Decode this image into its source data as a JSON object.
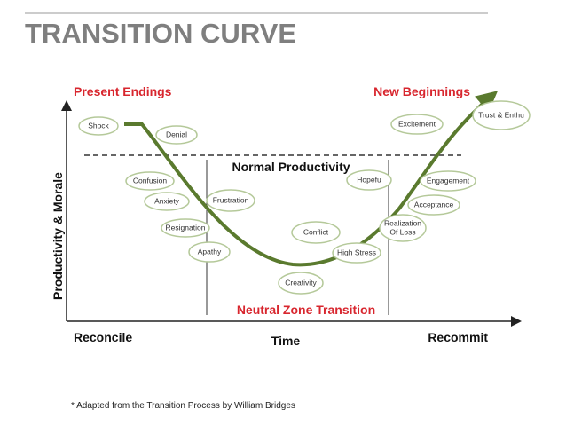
{
  "header": {
    "title": "TRANSITION CURVE"
  },
  "diagram": {
    "y_axis_label": "Productivity & Morale",
    "x_axis_label": "Time",
    "x_start_label": "Reconcile",
    "x_end_label": "Recommit",
    "phase_left": "Present Endings",
    "phase_right": "New Beginnings",
    "phase_middle": "Neutral Zone Transition",
    "baseline_label": "Normal Productivity",
    "nodes": [
      {
        "label": "Shock"
      },
      {
        "label": "Denial"
      },
      {
        "label": "Confusion"
      },
      {
        "label": "Anxiety"
      },
      {
        "label": "Frustration"
      },
      {
        "label": "Resignation"
      },
      {
        "label": "Apathy"
      },
      {
        "label": "Conflict"
      },
      {
        "label": "Creativity"
      },
      {
        "label": "High Stress"
      },
      {
        "label": "Hopefu"
      },
      {
        "label": "Realization",
        "label2": "Of Loss"
      },
      {
        "label": "Excitement"
      },
      {
        "label": "Engagement"
      },
      {
        "label": "Acceptance"
      },
      {
        "label": "Trust & Enthu"
      }
    ]
  },
  "footnote": "* Adapted from the Transition Process by William Bridges"
}
